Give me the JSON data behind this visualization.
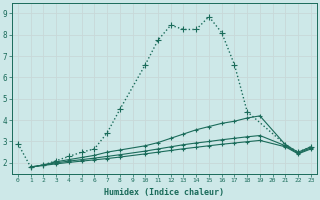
{
  "background_color": "#cde8e8",
  "grid_color": "#c8d8d8",
  "line_color": "#1a6b5a",
  "xlabel": "Humidex (Indice chaleur)",
  "xlim": [
    -0.5,
    23.5
  ],
  "ylim": [
    1.5,
    9.5
  ],
  "xticks": [
    0,
    1,
    2,
    3,
    4,
    5,
    6,
    7,
    8,
    9,
    10,
    11,
    12,
    13,
    14,
    15,
    16,
    17,
    18,
    19,
    20,
    21,
    22,
    23
  ],
  "yticks": [
    2,
    3,
    4,
    5,
    6,
    7,
    8,
    9
  ],
  "curves": [
    {
      "x": [
        0,
        1,
        2,
        3,
        4,
        5,
        6,
        7,
        8,
        10,
        11,
        12,
        13,
        14,
        15,
        16,
        17,
        18,
        21,
        22,
        23
      ],
      "y": [
        2.9,
        1.8,
        1.9,
        2.1,
        2.3,
        2.5,
        2.65,
        3.4,
        4.5,
        6.6,
        7.75,
        8.45,
        8.25,
        8.25,
        8.85,
        8.1,
        6.6,
        4.4,
        2.85,
        2.5,
        2.75
      ],
      "marker": "+",
      "markersize": 4,
      "linewidth": 1.0,
      "dotted": true
    },
    {
      "x": [
        1,
        2,
        3,
        4,
        5,
        6,
        7,
        8,
        10,
        11,
        12,
        13,
        14,
        15,
        16,
        17,
        18,
        19,
        21,
        22,
        23
      ],
      "y": [
        1.8,
        1.9,
        2.05,
        2.15,
        2.25,
        2.35,
        2.5,
        2.6,
        2.8,
        2.95,
        3.15,
        3.35,
        3.55,
        3.7,
        3.85,
        3.95,
        4.1,
        4.2,
        2.85,
        2.5,
        2.75
      ],
      "marker": "+",
      "markersize": 3,
      "linewidth": 0.8,
      "dotted": false
    },
    {
      "x": [
        1,
        2,
        3,
        4,
        5,
        6,
        7,
        8,
        10,
        11,
        12,
        13,
        14,
        15,
        16,
        17,
        18,
        19,
        21,
        22,
        23
      ],
      "y": [
        1.8,
        1.9,
        2.0,
        2.08,
        2.15,
        2.22,
        2.3,
        2.38,
        2.55,
        2.65,
        2.75,
        2.85,
        2.93,
        3.0,
        3.08,
        3.15,
        3.22,
        3.28,
        2.8,
        2.45,
        2.7
      ],
      "marker": "+",
      "markersize": 3,
      "linewidth": 0.8,
      "dotted": false
    },
    {
      "x": [
        1,
        2,
        3,
        4,
        5,
        6,
        7,
        8,
        10,
        11,
        12,
        13,
        14,
        15,
        16,
        17,
        18,
        19,
        21,
        22,
        23
      ],
      "y": [
        1.8,
        1.88,
        1.95,
        2.02,
        2.08,
        2.14,
        2.2,
        2.27,
        2.42,
        2.5,
        2.58,
        2.66,
        2.73,
        2.8,
        2.87,
        2.93,
        2.99,
        3.05,
        2.75,
        2.42,
        2.65
      ],
      "marker": "+",
      "markersize": 3,
      "linewidth": 0.8,
      "dotted": false
    }
  ]
}
